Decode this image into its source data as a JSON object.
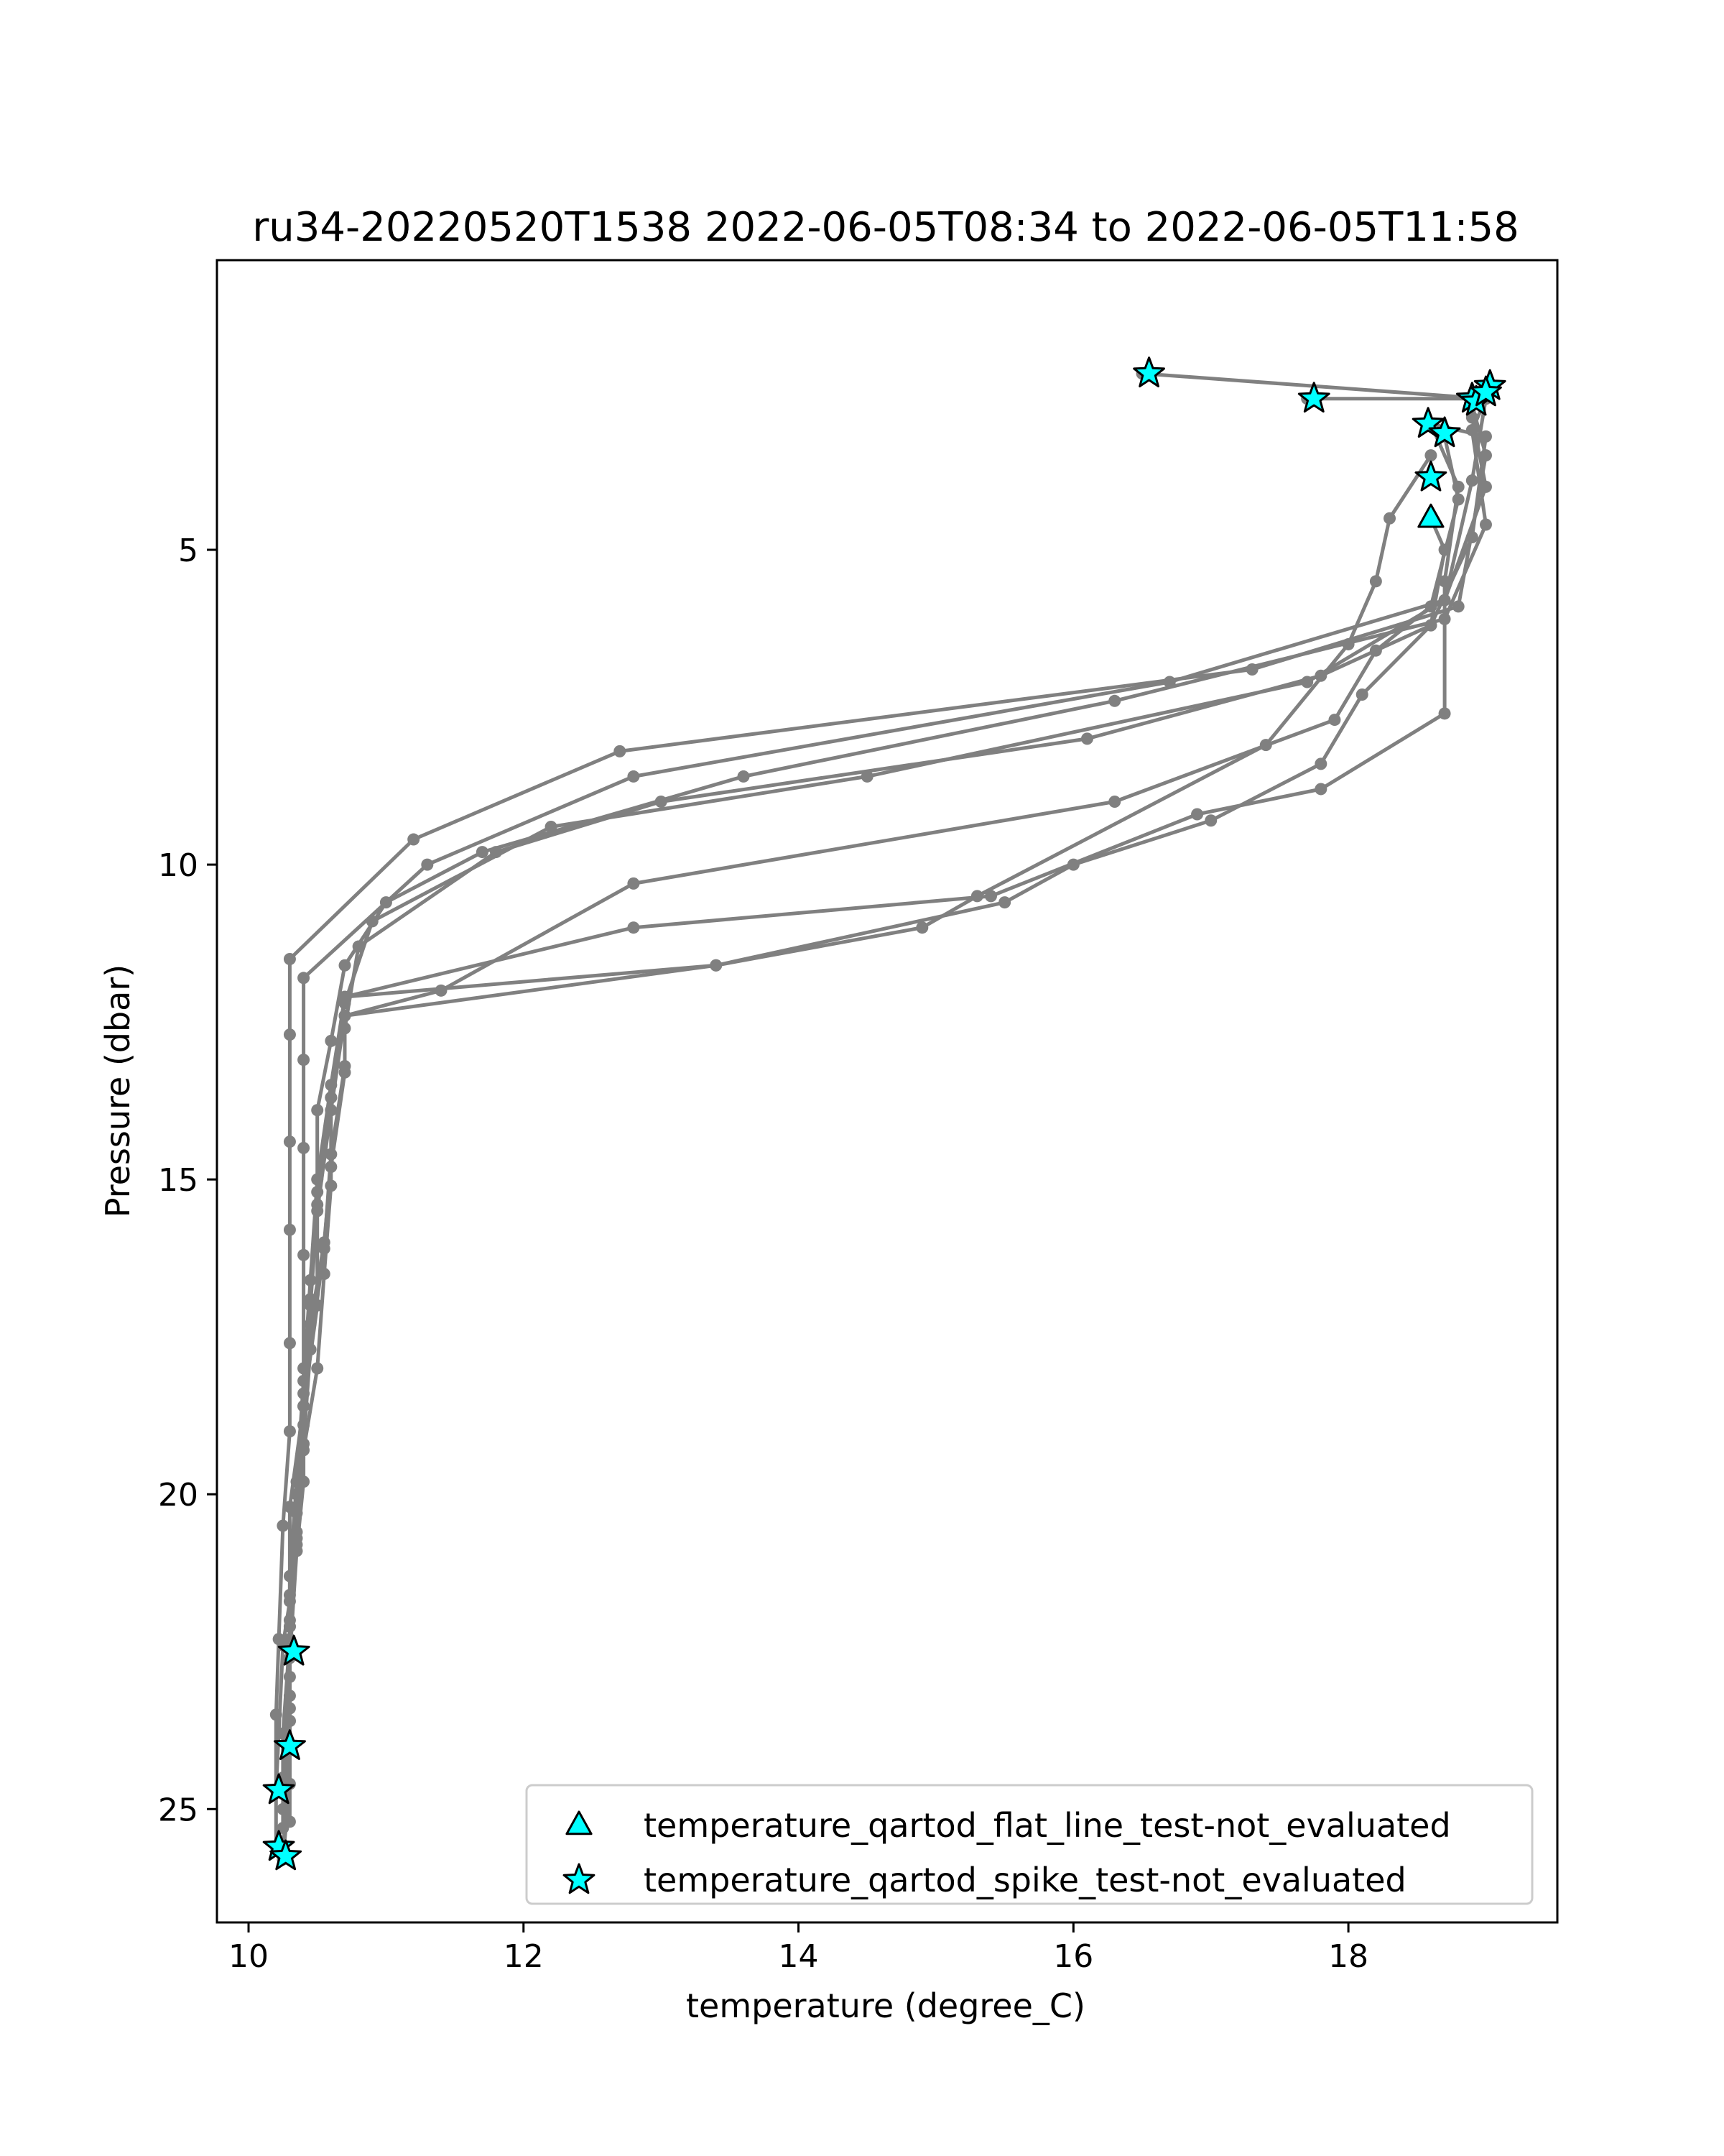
{
  "chart_data": {
    "type": "line",
    "title": "ru34-20220520T1538 2022-06-05T08:34 to 2022-06-05T11:58",
    "xlabel": "temperature (degree_C)",
    "ylabel": "Pressure (dbar)",
    "xlim": [
      9.77,
      19.52
    ],
    "ylim": [
      26.8,
      0.4
    ],
    "y_inverted": true,
    "xticks": [
      10,
      12,
      14,
      16,
      18
    ],
    "yticks": [
      5,
      10,
      15,
      20,
      25
    ],
    "grid": false,
    "legend_position": "lower-right",
    "line_color": "#808080",
    "marker_color": "#00ffff",
    "profiles": [
      {
        "points": [
          [
            18.9,
            2.7
          ],
          [
            19.0,
            3.5
          ],
          [
            18.8,
            5.9
          ],
          [
            17.3,
            6.9
          ],
          [
            12.7,
            8.2
          ],
          [
            11.2,
            9.6
          ],
          [
            10.3,
            11.5
          ],
          [
            10.3,
            12.7
          ],
          [
            10.3,
            14.4
          ],
          [
            10.3,
            15.8
          ],
          [
            10.3,
            17.6
          ],
          [
            10.3,
            19.0
          ],
          [
            10.25,
            20.5
          ],
          [
            10.22,
            22.3
          ],
          [
            10.2,
            23.5
          ],
          [
            10.2,
            24.7
          ],
          [
            10.2,
            25.6
          ]
        ]
      },
      {
        "points": [
          [
            18.9,
            2.9
          ],
          [
            19.0,
            4.0
          ],
          [
            18.7,
            5.8
          ],
          [
            16.7,
            7.1
          ],
          [
            12.8,
            8.6
          ],
          [
            11.3,
            10.0
          ],
          [
            10.4,
            11.8
          ],
          [
            10.4,
            13.1
          ],
          [
            10.4,
            14.5
          ],
          [
            10.4,
            16.2
          ],
          [
            10.4,
            18.0
          ],
          [
            10.4,
            19.8
          ],
          [
            10.35,
            20.9
          ],
          [
            10.3,
            22.6
          ],
          [
            10.3,
            24.0
          ],
          [
            10.25,
            25.7
          ]
        ]
      },
      {
        "points": [
          [
            16.5,
            2.2
          ],
          [
            19.0,
            2.6
          ],
          [
            18.9,
            3.1
          ],
          [
            19.0,
            4.6
          ],
          [
            18.7,
            6.1
          ],
          [
            16.3,
            7.4
          ],
          [
            13.6,
            8.6
          ],
          [
            11.7,
            9.8
          ],
          [
            11.0,
            10.6
          ],
          [
            10.7,
            11.6
          ],
          [
            10.6,
            12.8
          ],
          [
            10.5,
            13.9
          ],
          [
            10.5,
            15.4
          ],
          [
            10.5,
            17.0
          ],
          [
            10.4,
            18.6
          ],
          [
            10.3,
            20.2
          ],
          [
            10.3,
            21.7
          ],
          [
            10.25,
            22.4
          ],
          [
            10.2,
            24.7
          ]
        ]
      },
      {
        "points": [
          [
            17.7,
            2.6
          ],
          [
            19.0,
            2.6
          ],
          [
            18.9,
            3.9
          ],
          [
            18.7,
            5.8
          ],
          [
            17.7,
            7.1
          ],
          [
            14.5,
            8.6
          ],
          [
            12.2,
            9.4
          ],
          [
            10.9,
            10.9
          ],
          [
            10.7,
            12.2
          ],
          [
            10.6,
            13.7
          ],
          [
            10.6,
            15.1
          ],
          [
            10.55,
            16.5
          ],
          [
            10.5,
            18.0
          ],
          [
            10.4,
            19.3
          ],
          [
            10.35,
            20.8
          ],
          [
            10.3,
            22.1
          ],
          [
            10.3,
            23.4
          ],
          [
            10.3,
            24.6
          ],
          [
            10.25,
            25.8
          ]
        ]
      },
      {
        "points": [
          [
            18.6,
            3.0
          ],
          [
            19.0,
            3.2
          ],
          [
            18.9,
            4.8
          ],
          [
            18.6,
            6.2
          ],
          [
            17.8,
            7.0
          ],
          [
            16.1,
            8.0
          ],
          [
            13.0,
            9.0
          ],
          [
            11.8,
            9.8
          ],
          [
            10.8,
            11.3
          ],
          [
            10.7,
            12.6
          ],
          [
            10.7,
            13.3
          ],
          [
            10.6,
            14.8
          ],
          [
            10.55,
            16.0
          ],
          [
            10.45,
            17.3
          ],
          [
            10.4,
            18.9
          ],
          [
            10.35,
            20.6
          ],
          [
            10.3,
            22.3
          ],
          [
            10.25,
            23.8
          ],
          [
            10.25,
            25.3
          ]
        ]
      },
      {
        "points": [
          [
            18.7,
            3.2
          ],
          [
            18.8,
            4.2
          ],
          [
            18.6,
            5.9
          ],
          [
            18.2,
            6.6
          ],
          [
            17.9,
            7.7
          ],
          [
            16.3,
            9.0
          ],
          [
            12.8,
            10.3
          ],
          [
            11.4,
            12.0
          ],
          [
            10.7,
            12.4
          ],
          [
            10.7,
            13.2
          ],
          [
            10.6,
            14.6
          ],
          [
            10.55,
            16.1
          ],
          [
            10.45,
            17.7
          ],
          [
            10.4,
            19.2
          ],
          [
            10.35,
            20.7
          ],
          [
            10.3,
            22.1
          ],
          [
            10.3,
            23.6
          ],
          [
            10.25,
            25.0
          ]
        ]
      },
      {
        "points": [
          [
            18.6,
            3.5
          ],
          [
            18.3,
            4.5
          ],
          [
            18.2,
            5.5
          ],
          [
            18.0,
            6.5
          ],
          [
            17.4,
            8.1
          ],
          [
            15.3,
            10.5
          ],
          [
            14.9,
            11.0
          ],
          [
            13.4,
            11.6
          ],
          [
            10.7,
            12.4
          ],
          [
            10.6,
            13.9
          ],
          [
            10.5,
            15.5
          ],
          [
            10.45,
            17.0
          ],
          [
            10.4,
            18.6
          ],
          [
            10.35,
            20.3
          ],
          [
            10.3,
            22.0
          ],
          [
            10.3,
            23.6
          ],
          [
            10.3,
            25.2
          ]
        ]
      },
      {
        "points": [
          [
            18.6,
            4.5
          ],
          [
            18.7,
            5.0
          ],
          [
            18.6,
            6.2
          ],
          [
            18.1,
            7.3
          ],
          [
            17.8,
            8.4
          ],
          [
            17.0,
            9.3
          ],
          [
            16.0,
            10.0
          ],
          [
            15.5,
            10.6
          ],
          [
            13.4,
            11.6
          ],
          [
            10.7,
            12.1
          ],
          [
            10.6,
            13.7
          ],
          [
            10.5,
            15.2
          ],
          [
            10.45,
            16.9
          ],
          [
            10.4,
            18.4
          ],
          [
            10.35,
            20.0
          ],
          [
            10.3,
            21.6
          ],
          [
            10.3,
            23.2
          ]
        ]
      },
      {
        "points": [
          [
            18.6,
            3.0
          ],
          [
            18.8,
            4.0
          ],
          [
            18.7,
            5.5
          ],
          [
            18.7,
            7.6
          ],
          [
            17.8,
            8.8
          ],
          [
            16.9,
            9.2
          ],
          [
            15.4,
            10.5
          ],
          [
            12.8,
            11.0
          ],
          [
            10.7,
            12.1
          ],
          [
            10.6,
            13.5
          ],
          [
            10.5,
            15.0
          ],
          [
            10.45,
            16.6
          ],
          [
            10.4,
            18.2
          ],
          [
            10.35,
            19.8
          ],
          [
            10.3,
            21.3
          ],
          [
            10.3,
            22.9
          ],
          [
            10.25,
            24.5
          ]
        ]
      }
    ],
    "flagged_points": [
      {
        "flag": "temperature_qartod_flat_line_test-not_evaluated",
        "marker": "triangle",
        "points": [
          [
            18.6,
            4.5
          ]
        ]
      },
      {
        "flag": "temperature_qartod_spike_test-not_evaluated",
        "marker": "star",
        "points": [
          [
            16.55,
            2.2
          ],
          [
            17.75,
            2.6
          ],
          [
            18.9,
            2.6
          ],
          [
            18.93,
            2.65
          ],
          [
            19.03,
            2.4
          ],
          [
            19.0,
            2.5
          ],
          [
            18.58,
            3.0
          ],
          [
            18.7,
            3.15
          ],
          [
            18.6,
            3.85
          ],
          [
            10.33,
            22.5
          ],
          [
            10.3,
            24.0
          ],
          [
            10.22,
            24.7
          ],
          [
            10.22,
            25.6
          ],
          [
            10.27,
            25.75
          ]
        ]
      }
    ],
    "legend": [
      {
        "marker": "triangle",
        "label": "temperature_qartod_flat_line_test-not_evaluated"
      },
      {
        "marker": "star",
        "label": "temperature_qartod_spike_test-not_evaluated"
      }
    ]
  }
}
